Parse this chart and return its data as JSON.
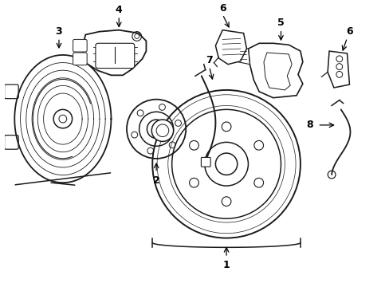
{
  "background_color": "#ffffff",
  "line_color": "#1a1a1a",
  "line_width": 1.1,
  "fig_width": 4.89,
  "fig_height": 3.6,
  "dpi": 100
}
